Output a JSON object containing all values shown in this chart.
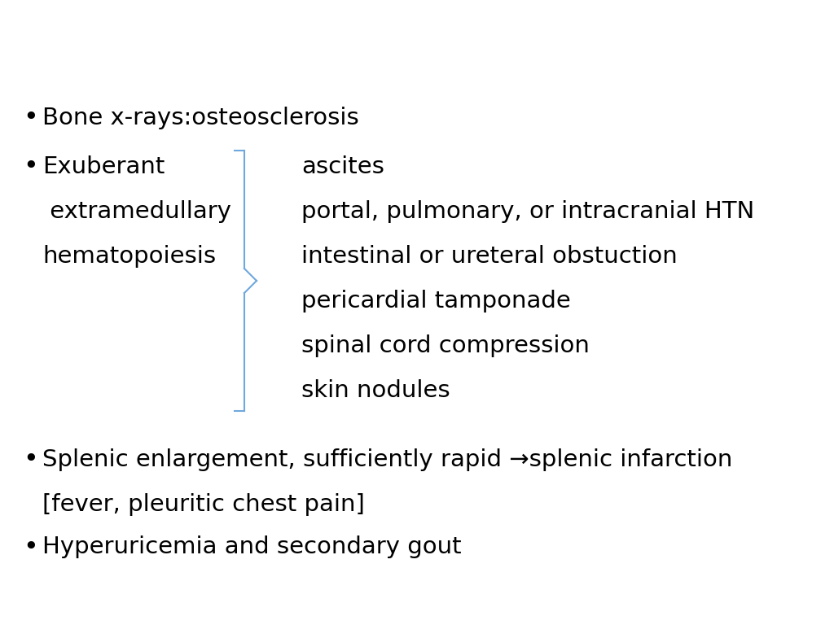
{
  "background_color": "#ffffff",
  "bullet_color": "#000000",
  "text_color": "#000000",
  "bracket_color": "#6fa8dc",
  "font_family": "DejaVu Sans",
  "bullet1": "Bone x-rays:osteosclerosis",
  "bullet2_left_line1": "Exuberant",
  "bullet2_left_line2": " extramedullary",
  "bullet2_left_line3": "hematopoiesis",
  "bullet2_right": [
    "ascites",
    "portal, pulmonary, or intracranial HTN",
    "intestinal or ureteral obstuction",
    "pericardial tamponade",
    "spinal cord compression",
    "skin nodules"
  ],
  "bullet3_line1": "Splenic enlargement, sufficiently rapid →splenic infarction",
  "bullet3_line2": "[fever, pleuritic chest pain]",
  "bullet4": "Hyperuricemia and secondary gout",
  "font_size": 21,
  "figsize": [
    10.24,
    7.68
  ],
  "dpi": 100
}
